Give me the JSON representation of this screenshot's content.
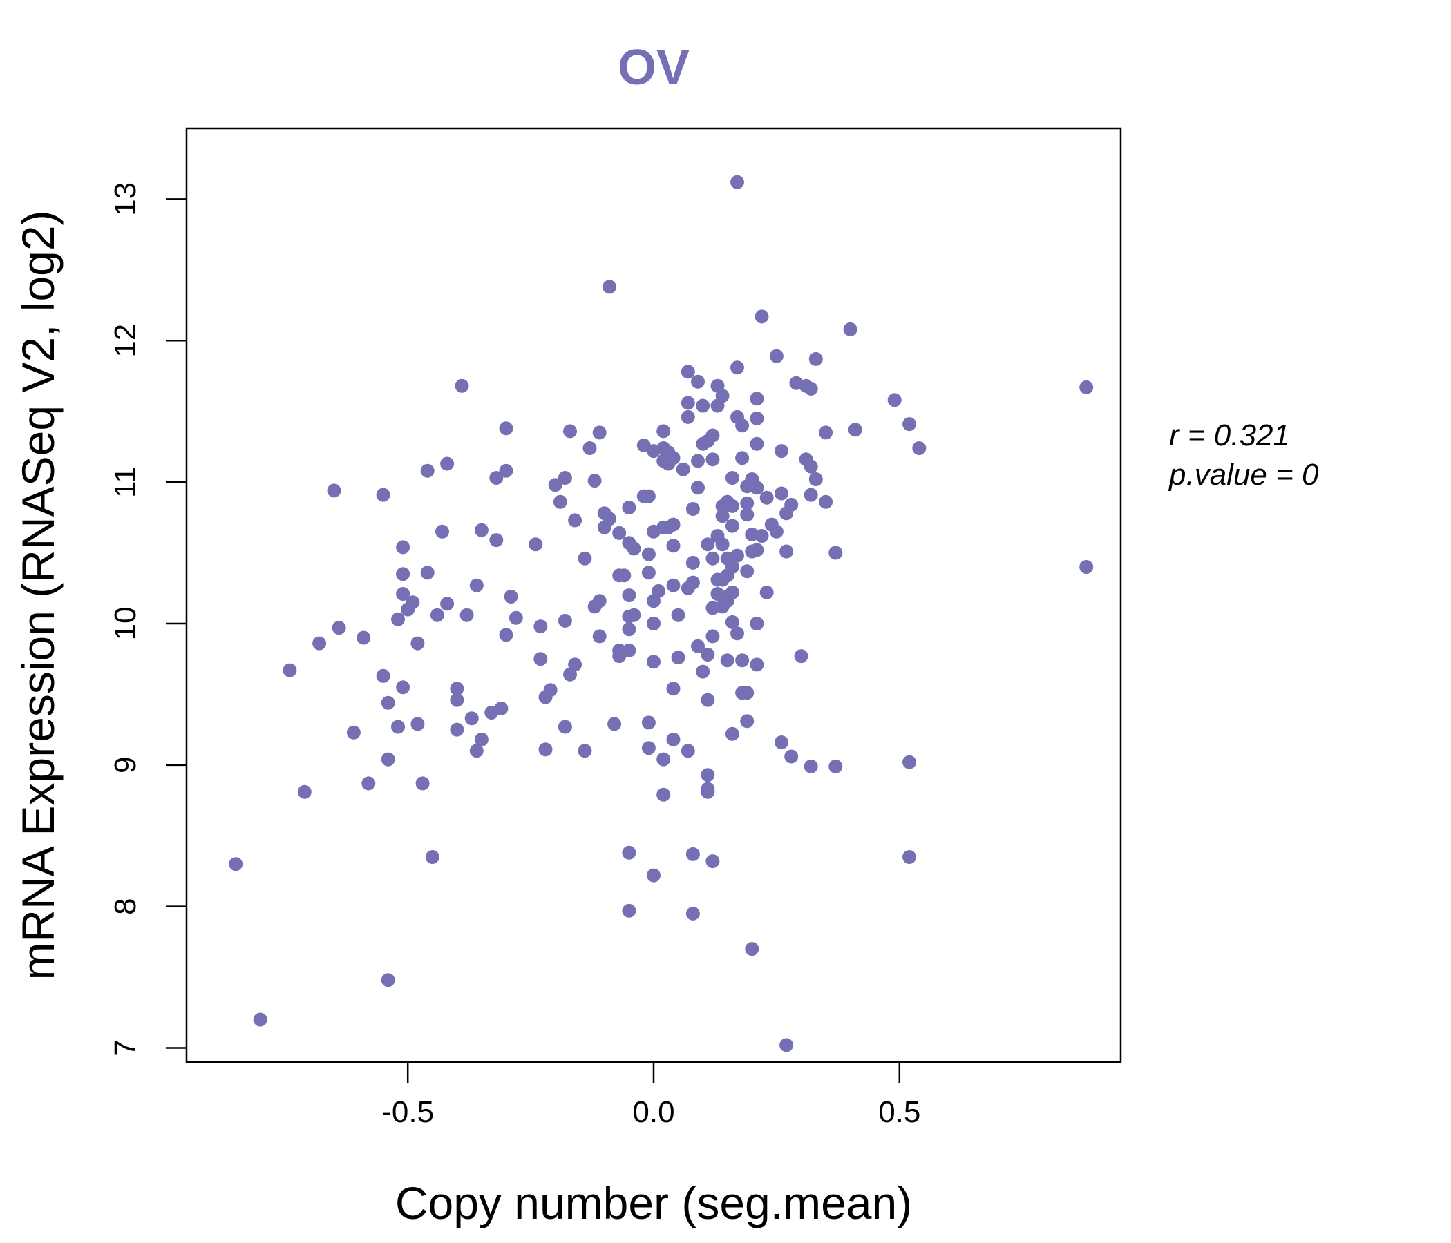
{
  "chart_data": {
    "type": "scatter",
    "title": "OV",
    "xlabel": "Copy number (seg.mean)",
    "ylabel": "mRNA Expression (RNASeq V2, log2)",
    "xlim": [
      -0.95,
      0.95
    ],
    "ylim": [
      6.9,
      13.5
    ],
    "xticks": [
      -0.5,
      0.0,
      0.5
    ],
    "xtick_labels": [
      "-0.5",
      "0.0",
      "0.5"
    ],
    "yticks": [
      7,
      8,
      9,
      10,
      11,
      12,
      13
    ],
    "ytick_labels": [
      "7",
      "8",
      "9",
      "10",
      "11",
      "12",
      "13"
    ],
    "color": "#7570B3",
    "annotation": {
      "r_label": "r = 0.321",
      "p_label": "p.value = 0"
    },
    "points": [
      [
        0.17,
        13.12
      ],
      [
        -0.09,
        12.38
      ],
      [
        0.22,
        12.17
      ],
      [
        0.4,
        12.08
      ],
      [
        0.25,
        11.89
      ],
      [
        0.33,
        11.87
      ],
      [
        0.17,
        11.81
      ],
      [
        0.07,
        11.78
      ],
      [
        0.09,
        11.71
      ],
      [
        0.13,
        11.68
      ],
      [
        0.29,
        11.7
      ],
      [
        0.31,
        11.68
      ],
      [
        0.32,
        11.66
      ],
      [
        0.88,
        11.67
      ],
      [
        -0.39,
        11.68
      ],
      [
        0.21,
        11.59
      ],
      [
        0.49,
        11.58
      ],
      [
        0.14,
        11.61
      ],
      [
        0.07,
        11.56
      ],
      [
        0.1,
        11.54
      ],
      [
        0.13,
        11.54
      ],
      [
        0.07,
        11.46
      ],
      [
        0.17,
        11.46
      ],
      [
        0.21,
        11.45
      ],
      [
        0.52,
        11.41
      ],
      [
        0.18,
        11.4
      ],
      [
        -0.3,
        11.38
      ],
      [
        0.02,
        11.36
      ],
      [
        -0.17,
        11.36
      ],
      [
        -0.11,
        11.35
      ],
      [
        0.35,
        11.35
      ],
      [
        0.41,
        11.37
      ],
      [
        0.12,
        11.33
      ],
      [
        0.11,
        11.29
      ],
      [
        0.1,
        11.27
      ],
      [
        0.21,
        11.27
      ],
      [
        -0.02,
        11.26
      ],
      [
        0.02,
        11.24
      ],
      [
        -0.13,
        11.24
      ],
      [
        0.54,
        11.24
      ],
      [
        0.03,
        11.21
      ],
      [
        0.26,
        11.22
      ],
      [
        0.0,
        11.22
      ],
      [
        0.04,
        11.17
      ],
      [
        0.02,
        11.15
      ],
      [
        0.18,
        11.17
      ],
      [
        0.31,
        11.16
      ],
      [
        0.12,
        11.16
      ],
      [
        0.09,
        11.15
      ],
      [
        0.03,
        11.13
      ],
      [
        0.32,
        11.11
      ],
      [
        -0.42,
        11.13
      ],
      [
        0.06,
        11.09
      ],
      [
        -0.46,
        11.08
      ],
      [
        -0.3,
        11.08
      ],
      [
        -0.32,
        11.03
      ],
      [
        -0.18,
        11.03
      ],
      [
        0.16,
        11.03
      ],
      [
        -0.12,
        11.01
      ],
      [
        0.33,
        11.02
      ],
      [
        0.2,
        11.02
      ],
      [
        -0.2,
        10.98
      ],
      [
        0.19,
        10.97
      ],
      [
        0.09,
        10.96
      ],
      [
        0.21,
        10.96
      ],
      [
        -0.65,
        10.94
      ],
      [
        -0.55,
        10.91
      ],
      [
        0.26,
        10.92
      ],
      [
        0.32,
        10.91
      ],
      [
        -0.02,
        10.9
      ],
      [
        -0.01,
        10.9
      ],
      [
        0.23,
        10.89
      ],
      [
        0.19,
        10.85
      ],
      [
        0.35,
        10.86
      ],
      [
        -0.19,
        10.86
      ],
      [
        0.28,
        10.84
      ],
      [
        0.15,
        10.86
      ],
      [
        0.16,
        10.83
      ],
      [
        0.14,
        10.83
      ],
      [
        -0.05,
        10.82
      ],
      [
        0.08,
        10.81
      ],
      [
        -0.1,
        10.78
      ],
      [
        0.27,
        10.78
      ],
      [
        0.19,
        10.77
      ],
      [
        0.14,
        10.76
      ],
      [
        -0.09,
        10.74
      ],
      [
        -0.16,
        10.73
      ],
      [
        0.04,
        10.7
      ],
      [
        0.24,
        10.7
      ],
      [
        -0.1,
        10.68
      ],
      [
        0.16,
        10.69
      ],
      [
        0.02,
        10.68
      ],
      [
        0.03,
        10.68
      ],
      [
        0.25,
        10.65
      ],
      [
        -0.43,
        10.65
      ],
      [
        0.0,
        10.65
      ],
      [
        -0.35,
        10.66
      ],
      [
        -0.07,
        10.64
      ],
      [
        0.13,
        10.62
      ],
      [
        0.2,
        10.63
      ],
      [
        0.22,
        10.62
      ],
      [
        -0.32,
        10.59
      ],
      [
        -0.24,
        10.56
      ],
      [
        -0.05,
        10.57
      ],
      [
        0.11,
        10.56
      ],
      [
        0.04,
        10.55
      ],
      [
        0.14,
        10.56
      ],
      [
        -0.04,
        10.53
      ],
      [
        0.21,
        10.52
      ],
      [
        -0.51,
        10.54
      ],
      [
        0.2,
        10.51
      ],
      [
        0.37,
        10.5
      ],
      [
        0.27,
        10.51
      ],
      [
        0.17,
        10.48
      ],
      [
        0.15,
        10.46
      ],
      [
        -0.01,
        10.49
      ],
      [
        0.12,
        10.46
      ],
      [
        -0.14,
        10.46
      ],
      [
        0.08,
        10.43
      ],
      [
        0.16,
        10.4
      ],
      [
        0.88,
        10.4
      ],
      [
        0.19,
        10.37
      ],
      [
        0.15,
        10.34
      ],
      [
        -0.01,
        10.36
      ],
      [
        -0.06,
        10.34
      ],
      [
        -0.51,
        10.35
      ],
      [
        -0.46,
        10.36
      ],
      [
        0.13,
        10.31
      ],
      [
        0.14,
        10.31
      ],
      [
        -0.07,
        10.34
      ],
      [
        0.08,
        10.29
      ],
      [
        0.04,
        10.27
      ],
      [
        -0.36,
        10.27
      ],
      [
        0.07,
        10.25
      ],
      [
        0.01,
        10.23
      ],
      [
        0.23,
        10.22
      ],
      [
        0.16,
        10.22
      ],
      [
        0.13,
        10.21
      ],
      [
        0.15,
        10.19
      ],
      [
        -0.51,
        10.21
      ],
      [
        0.15,
        10.16
      ],
      [
        -0.29,
        10.19
      ],
      [
        -0.05,
        10.2
      ],
      [
        -0.42,
        10.14
      ],
      [
        -0.11,
        10.16
      ],
      [
        0.14,
        10.12
      ],
      [
        0.0,
        10.16
      ],
      [
        0.12,
        10.11
      ],
      [
        -0.49,
        10.15
      ],
      [
        -0.12,
        10.12
      ],
      [
        -0.5,
        10.1
      ],
      [
        0.05,
        10.06
      ],
      [
        -0.04,
        10.06
      ],
      [
        -0.05,
        10.05
      ],
      [
        -0.38,
        10.06
      ],
      [
        -0.44,
        10.06
      ],
      [
        -0.28,
        10.04
      ],
      [
        -0.52,
        10.03
      ],
      [
        0.16,
        10.01
      ],
      [
        0.0,
        10.0
      ],
      [
        0.21,
        10.0
      ],
      [
        -0.18,
        10.02
      ],
      [
        -0.64,
        9.97
      ],
      [
        -0.23,
        9.98
      ],
      [
        -0.05,
        9.96
      ],
      [
        -0.3,
        9.92
      ],
      [
        0.12,
        9.91
      ],
      [
        0.17,
        9.93
      ],
      [
        -0.11,
        9.91
      ],
      [
        -0.59,
        9.9
      ],
      [
        -0.68,
        9.86
      ],
      [
        -0.48,
        9.86
      ],
      [
        0.09,
        9.84
      ],
      [
        -0.07,
        9.81
      ],
      [
        -0.05,
        9.81
      ],
      [
        0.11,
        9.78
      ],
      [
        -0.07,
        9.77
      ],
      [
        0.3,
        9.77
      ],
      [
        0.05,
        9.76
      ],
      [
        -0.23,
        9.75
      ],
      [
        0.15,
        9.74
      ],
      [
        0.18,
        9.74
      ],
      [
        0.0,
        9.73
      ],
      [
        -0.16,
        9.71
      ],
      [
        0.21,
        9.71
      ],
      [
        -0.74,
        9.67
      ],
      [
        0.1,
        9.66
      ],
      [
        -0.17,
        9.64
      ],
      [
        -0.55,
        9.63
      ],
      [
        -0.51,
        9.55
      ],
      [
        0.04,
        9.54
      ],
      [
        -0.4,
        9.54
      ],
      [
        -0.21,
        9.53
      ],
      [
        0.18,
        9.51
      ],
      [
        0.19,
        9.51
      ],
      [
        -0.22,
        9.48
      ],
      [
        0.11,
        9.46
      ],
      [
        -0.4,
        9.46
      ],
      [
        -0.54,
        9.44
      ],
      [
        -0.31,
        9.4
      ],
      [
        -0.33,
        9.37
      ],
      [
        -0.37,
        9.33
      ],
      [
        -0.08,
        9.29
      ],
      [
        -0.48,
        9.29
      ],
      [
        -0.01,
        9.3
      ],
      [
        0.19,
        9.31
      ],
      [
        -0.52,
        9.27
      ],
      [
        -0.18,
        9.27
      ],
      [
        -0.4,
        9.25
      ],
      [
        -0.61,
        9.23
      ],
      [
        0.16,
        9.22
      ],
      [
        0.04,
        9.18
      ],
      [
        -0.35,
        9.18
      ],
      [
        0.26,
        9.16
      ],
      [
        -0.01,
        9.12
      ],
      [
        -0.22,
        9.11
      ],
      [
        -0.14,
        9.1
      ],
      [
        0.07,
        9.1
      ],
      [
        -0.36,
        9.1
      ],
      [
        0.28,
        9.06
      ],
      [
        0.02,
        9.04
      ],
      [
        -0.54,
        9.04
      ],
      [
        0.52,
        9.02
      ],
      [
        0.32,
        8.99
      ],
      [
        0.37,
        8.99
      ],
      [
        0.11,
        8.93
      ],
      [
        -0.58,
        8.87
      ],
      [
        -0.47,
        8.87
      ],
      [
        0.11,
        8.83
      ],
      [
        0.11,
        8.81
      ],
      [
        -0.71,
        8.81
      ],
      [
        0.02,
        8.79
      ],
      [
        -0.05,
        8.38
      ],
      [
        0.08,
        8.37
      ],
      [
        -0.45,
        8.35
      ],
      [
        0.52,
        8.35
      ],
      [
        0.12,
        8.32
      ],
      [
        -0.85,
        8.3
      ],
      [
        0.0,
        8.22
      ],
      [
        -0.05,
        7.97
      ],
      [
        0.08,
        7.95
      ],
      [
        0.2,
        7.7
      ],
      [
        -0.54,
        7.48
      ],
      [
        -0.8,
        7.2
      ],
      [
        0.27,
        7.02
      ]
    ]
  }
}
